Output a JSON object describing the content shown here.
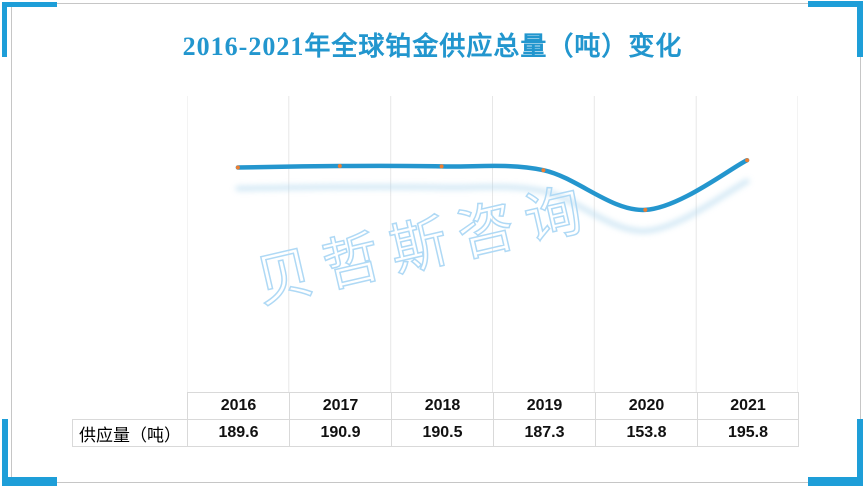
{
  "title": "2016-2021年全球铂金供应总量（吨）变化",
  "watermark": "贝哲斯咨询",
  "chart_data": {
    "type": "line",
    "title": "2016-2021年全球铂金供应总量（吨）变化",
    "categories": [
      "2016",
      "2017",
      "2018",
      "2019",
      "2020",
      "2021"
    ],
    "series": [
      {
        "name": "供应量（吨）",
        "values": [
          189.6,
          190.9,
          190.5,
          187.3,
          153.8,
          195.8
        ]
      }
    ],
    "xlabel": "",
    "ylabel": "",
    "ylim": [
      0,
      250
    ],
    "grid": "vertical-only",
    "legend_position": "none",
    "smooth": true,
    "line_color": "#2496ce",
    "marker_color": "#ed7d31",
    "shadow_color": "#a9d3ec",
    "gridline_color": "#e7e7e7"
  },
  "table": {
    "row_header": "供应量（吨）",
    "columns": [
      "2016",
      "2017",
      "2018",
      "2019",
      "2020",
      "2021"
    ],
    "values": [
      "189.6",
      "190.9",
      "190.5",
      "187.3",
      "153.8",
      "195.8"
    ]
  },
  "colors": {
    "title_text": "#2296ce",
    "corner_accent": "#1e9ed8",
    "page_border": "#c6c6c6",
    "table_border": "#d9d9d9",
    "watermark": "#afd9f5"
  }
}
